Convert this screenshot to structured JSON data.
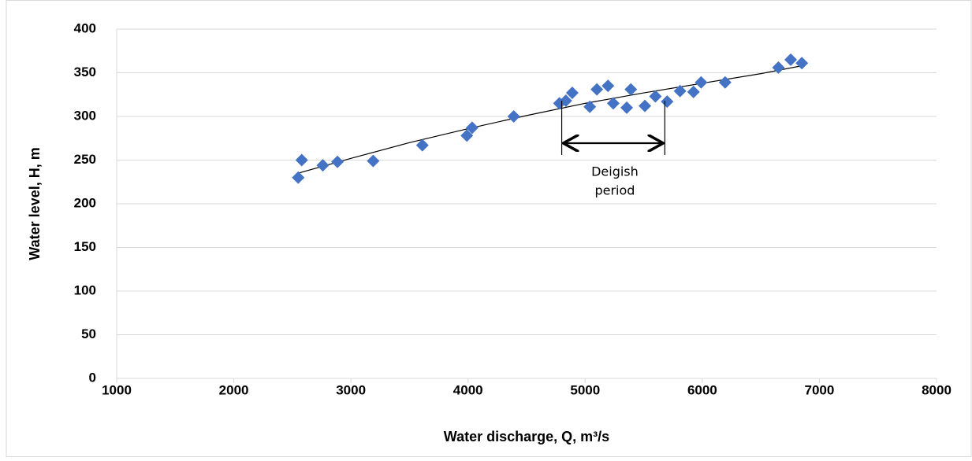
{
  "chart_data": {
    "type": "scatter",
    "x_label": "Water discharge, Q, m³/s",
    "y_label": "Water level, H, m",
    "series": [
      {
        "color": "#4472c4",
        "x": [
          2550,
          2580,
          2760,
          2885,
          3190,
          3610,
          3990,
          4035,
          4390,
          4780,
          4835,
          4890,
          5040,
          5100,
          5195,
          5240,
          5355,
          5390,
          5510,
          5600,
          5700,
          5810,
          5925,
          5990,
          6195,
          6650,
          6755,
          6850
        ],
        "values": [
          230,
          250,
          244,
          248,
          249,
          267,
          278,
          287,
          300,
          315,
          318,
          327,
          311,
          331,
          335,
          315,
          310,
          331,
          312,
          323,
          317,
          329,
          328,
          339,
          339,
          356,
          365,
          361
        ]
      }
    ],
    "trendline": {
      "color": "#000000",
      "x": [
        2550,
        3000,
        3500,
        4000,
        4500,
        5000,
        5500,
        6000,
        6500,
        6850
      ],
      "values": [
        235,
        252,
        270,
        286,
        301,
        315,
        327,
        338,
        349,
        358
      ]
    },
    "annotation": {
      "lines": [
        "Deigish",
        "period"
      ],
      "span": [
        4800,
        5680
      ]
    },
    "xlim": [
      1000,
      8000
    ],
    "xticks": [
      1000,
      2000,
      3000,
      4000,
      5000,
      6000,
      7000,
      8000
    ],
    "ylim": [
      0,
      400
    ],
    "yticks": [
      0,
      50,
      100,
      150,
      200,
      250,
      300,
      350,
      400
    ],
    "grid": true
  }
}
